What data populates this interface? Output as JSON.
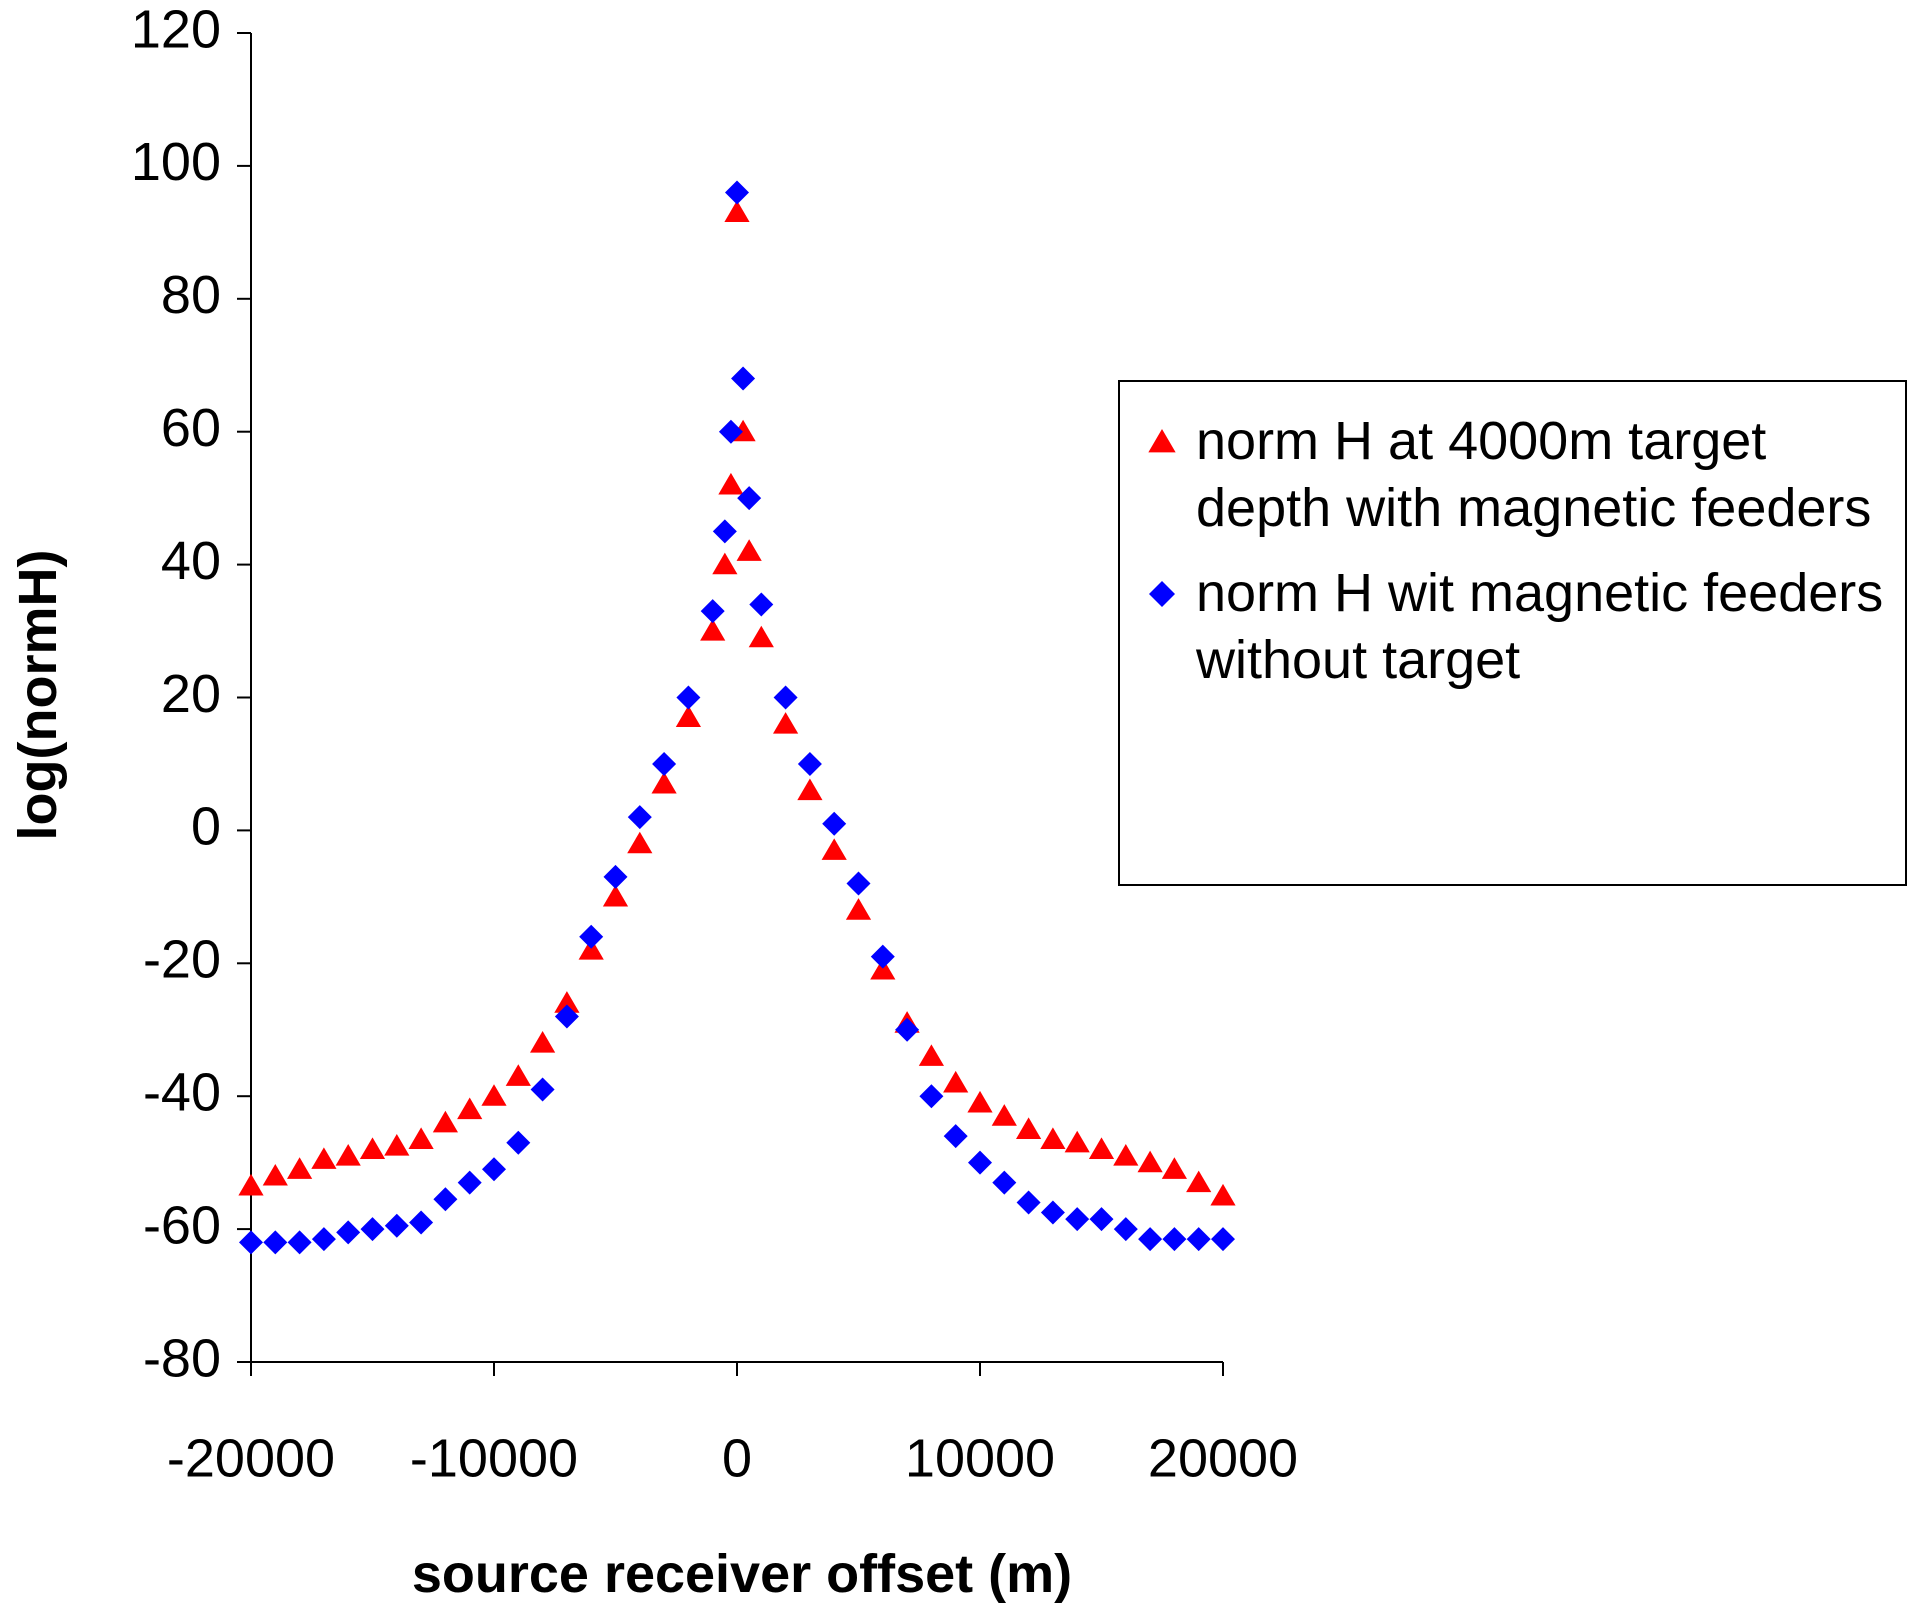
{
  "chart_data": {
    "type": "scatter",
    "x_label": "source receiver offset (m)",
    "y_label": "log(normH)",
    "x": [
      -20000,
      -19000,
      -18000,
      -17000,
      -16000,
      -15000,
      -14000,
      -13000,
      -12000,
      -11000,
      -10000,
      -9000,
      -8000,
      -7000,
      -6000,
      -5000,
      -4000,
      -3000,
      -2000,
      -1000,
      -500,
      -250,
      0,
      250,
      500,
      1000,
      2000,
      3000,
      4000,
      5000,
      6000,
      7000,
      8000,
      9000,
      10000,
      11000,
      12000,
      13000,
      14000,
      15000,
      16000,
      17000,
      18000,
      19000,
      20000
    ],
    "series": [
      {
        "name": "norm H at 4000m target depth with magnetic feeders",
        "color": "#ff0000",
        "marker": "triangle",
        "values": [
          -53.5,
          -52,
          -51,
          -49.5,
          -49,
          -48,
          -47.5,
          -46.5,
          -44,
          -42,
          -40,
          -37,
          -32,
          -26,
          -18,
          -10,
          -2,
          7,
          17,
          30,
          40,
          52,
          93,
          60,
          42,
          29,
          16,
          6,
          -3,
          -12,
          -21,
          -29,
          -34,
          -38,
          -41,
          -43,
          -45,
          -46.5,
          -47,
          -48,
          -49,
          -50,
          -51,
          -53,
          -55
        ]
      },
      {
        "name": "norm H wit magnetic feeders without target",
        "color": "#0000ff",
        "marker": "diamond",
        "values": [
          -62,
          -62,
          -62,
          -61.5,
          -60.5,
          -60,
          -59.5,
          -59,
          -55.5,
          -53,
          -51,
          -47,
          -39,
          -28,
          -16,
          -7,
          2,
          10,
          20,
          33,
          45,
          60,
          96,
          68,
          50,
          34,
          20,
          10,
          1,
          -8,
          -19,
          -30,
          -40,
          -46,
          -50,
          -53,
          -56,
          -57.5,
          -58.5,
          -58.5,
          -60,
          -61.5,
          -61.5,
          -61.5,
          -61.5
        ]
      }
    ],
    "xlim": [
      -20000,
      20000
    ],
    "xticks": [
      -20000,
      -10000,
      0,
      10000,
      20000
    ],
    "ylim": [
      -80,
      120
    ],
    "yticks": [
      -80,
      -60,
      -40,
      -20,
      0,
      20,
      40,
      60,
      80,
      100,
      120
    ],
    "legend": "right"
  }
}
